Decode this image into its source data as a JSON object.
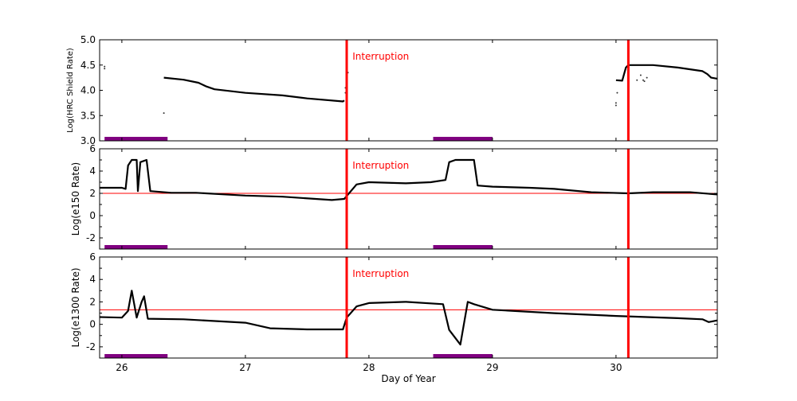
{
  "chart_data": [
    {
      "type": "line",
      "ylabel": "Log(HRC Shield Rate)",
      "xlabel": "",
      "xlim": [
        25.82,
        30.82
      ],
      "ylim": [
        3.0,
        5.0
      ],
      "yticks": [
        "3.0",
        "3.5",
        "4.0",
        "4.5",
        "5.0"
      ],
      "xticks": [
        26,
        27,
        28,
        29,
        30
      ],
      "annotation": "Interruption",
      "annotation_x": 27.86,
      "interruptions": [
        27.82,
        30.1
      ],
      "bars": [
        [
          25.86,
          26.37
        ],
        [
          28.52,
          29.0
        ]
      ],
      "bar_color": "#800080",
      "threshold": null,
      "series": [
        {
          "x": [
            26.34,
            26.5,
            26.62,
            26.68,
            26.75,
            27.0,
            27.3,
            27.5,
            27.79,
            27.8
          ],
          "y": [
            4.25,
            4.21,
            4.15,
            4.08,
            4.02,
            3.95,
            3.9,
            3.84,
            3.78,
            3.8
          ]
        },
        {
          "x": [
            30.0,
            30.05,
            30.08,
            30.1,
            30.3,
            30.5,
            30.7,
            30.74,
            30.77,
            30.82
          ],
          "y": [
            4.2,
            4.19,
            4.45,
            4.5,
            4.5,
            4.45,
            4.38,
            4.32,
            4.25,
            4.23
          ]
        }
      ],
      "points": {
        "x": [
          25.86,
          25.86,
          26.34,
          27.81,
          27.81,
          27.82,
          27.83,
          30.0,
          30.0,
          30.01,
          30.17,
          30.2,
          30.22,
          30.25,
          30.23
        ],
        "y": [
          4.47,
          4.43,
          3.55,
          3.95,
          4.05,
          4.2,
          4.35,
          3.75,
          3.7,
          3.95,
          4.2,
          4.3,
          4.2,
          4.25,
          4.18
        ]
      }
    },
    {
      "type": "line",
      "ylabel": "Log(e150  Rate)",
      "xlabel": "",
      "xlim": [
        25.82,
        30.82
      ],
      "ylim": [
        -3,
        6
      ],
      "yticks": [
        "-2",
        "0",
        "2",
        "4",
        "6"
      ],
      "xticks": [
        26,
        27,
        28,
        29,
        30
      ],
      "annotation": "Interruption",
      "annotation_x": 27.86,
      "interruptions": [
        27.82,
        30.1
      ],
      "bars": [
        [
          25.86,
          26.37
        ],
        [
          28.52,
          29.0
        ]
      ],
      "bar_color": "#800080",
      "threshold": 2.0,
      "series": [
        {
          "x": [
            25.82,
            26.0,
            26.03,
            26.05,
            26.08,
            26.12,
            26.13,
            26.15,
            26.2,
            26.23,
            26.4,
            26.6,
            27.0,
            27.3,
            27.7,
            27.8,
            27.9,
            28.0,
            28.3,
            28.5,
            28.62,
            28.65,
            28.7,
            28.85,
            28.88,
            29.0,
            29.3,
            29.5,
            29.8,
            30.1,
            30.3,
            30.6,
            30.82
          ],
          "y": [
            2.5,
            2.5,
            2.4,
            4.5,
            5.0,
            5.0,
            2.2,
            4.8,
            5.0,
            2.2,
            2.05,
            2.05,
            1.8,
            1.7,
            1.4,
            1.5,
            2.8,
            3.0,
            2.9,
            3.0,
            3.2,
            4.8,
            5.0,
            5.0,
            2.7,
            2.6,
            2.5,
            2.4,
            2.1,
            2.0,
            2.1,
            2.1,
            1.9
          ]
        }
      ]
    },
    {
      "type": "line",
      "ylabel": "Log(e1300 Rate)",
      "xlabel": "Day of Year",
      "xlim": [
        25.82,
        30.82
      ],
      "ylim": [
        -3,
        6
      ],
      "yticks": [
        "-2",
        "0",
        "2",
        "4",
        "6"
      ],
      "xticks": [
        26,
        27,
        28,
        29,
        30
      ],
      "annotation": "Interruption",
      "annotation_x": 27.86,
      "interruptions": [
        27.82,
        30.1
      ],
      "bars": [
        [
          25.86,
          26.37
        ],
        [
          28.52,
          29.0
        ]
      ],
      "bar_color": "#800080",
      "threshold": 1.3,
      "series": [
        {
          "x": [
            25.82,
            26.0,
            26.05,
            26.08,
            26.12,
            26.16,
            26.18,
            26.21,
            26.5,
            27.0,
            27.2,
            27.5,
            27.79,
            27.82,
            27.9,
            28.0,
            28.3,
            28.6,
            28.65,
            28.74,
            28.8,
            28.85,
            29.0,
            29.5,
            30.0,
            30.5,
            30.7,
            30.75,
            30.82
          ],
          "y": [
            0.65,
            0.6,
            1.2,
            3.0,
            0.6,
            2.0,
            2.5,
            0.5,
            0.45,
            0.15,
            -0.35,
            -0.45,
            -0.45,
            0.6,
            1.6,
            1.9,
            2.0,
            1.8,
            -0.5,
            -1.8,
            2.0,
            1.8,
            1.3,
            1.0,
            0.75,
            0.55,
            0.45,
            0.2,
            0.35
          ]
        }
      ]
    }
  ],
  "colors": {
    "interruption": "#ff0000",
    "threshold": "#ff0000",
    "data": "#000000"
  }
}
